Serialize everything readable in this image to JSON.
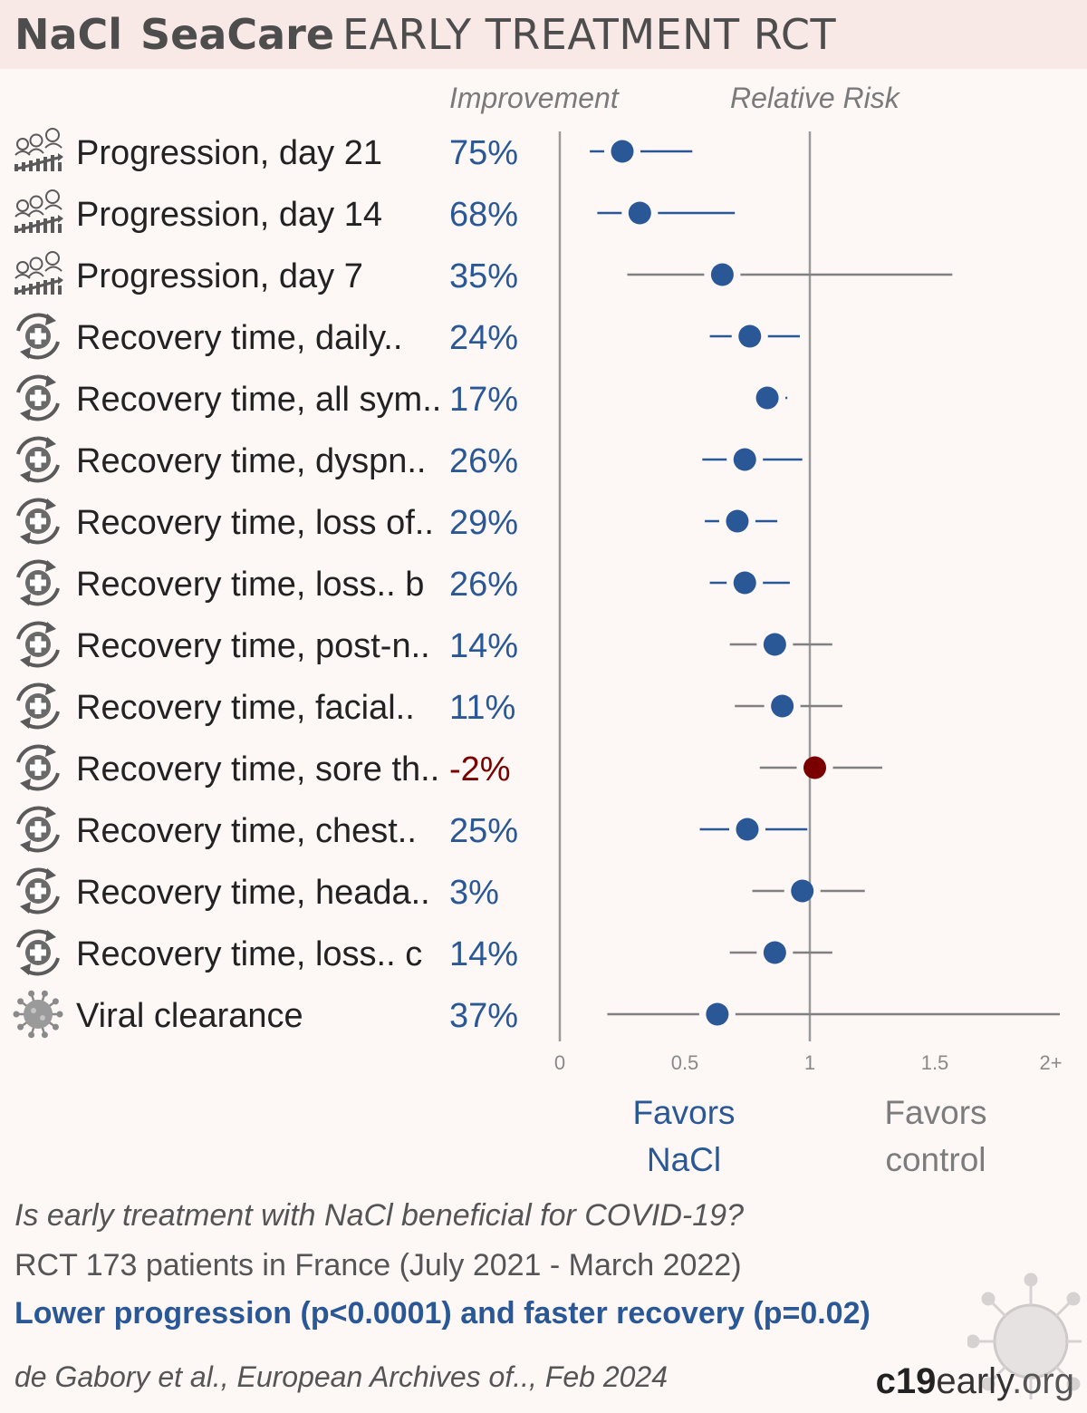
{
  "header": {
    "drug": "NaCl",
    "trial": "SeaCare",
    "subtitle": "EARLY TREATMENT  RCT"
  },
  "columns": {
    "improvement": "Improvement",
    "relative_risk": "Relative Risk"
  },
  "colors": {
    "favorable": "#2a5896",
    "unfavorable": "#7a0000",
    "ci_significant": "#2a5896",
    "ci_nonsignificant": "#808080",
    "axis": "#9a9a9a",
    "title_background": "#f8e8e6",
    "page_background": "#fdf7f6"
  },
  "chart_data": {
    "type": "forest",
    "xlim": [
      0,
      2
    ],
    "x_tick_labels": [
      "0",
      "0.5",
      "1",
      "1.5",
      "2+"
    ],
    "x_ticks": [
      0,
      0.5,
      1,
      1.5,
      2
    ],
    "reference_line": 1,
    "rows": [
      {
        "label": "Progression, day 21",
        "icon": "progression-icon",
        "improvement": "75%",
        "rr": 0.25,
        "ci": [
          0.12,
          0.53
        ],
        "significant": true
      },
      {
        "label": "Progression, day 14",
        "icon": "progression-icon",
        "improvement": "68%",
        "rr": 0.32,
        "ci": [
          0.15,
          0.7
        ],
        "significant": true
      },
      {
        "label": "Progression, day 7",
        "icon": "progression-icon",
        "improvement": "35%",
        "rr": 0.65,
        "ci": [
          0.27,
          1.57
        ],
        "significant": false
      },
      {
        "label": "Recovery time, daily..",
        "icon": "recovery-icon",
        "improvement": "24%",
        "rr": 0.76,
        "ci": [
          0.6,
          0.96
        ],
        "significant": true
      },
      {
        "label": "Recovery time, all sym..",
        "icon": "recovery-icon",
        "improvement": "17%",
        "rr": 0.83,
        "ci": [
          0.76,
          0.91
        ],
        "significant": true
      },
      {
        "label": "Recovery time, dyspn..",
        "icon": "recovery-icon",
        "improvement": "26%",
        "rr": 0.74,
        "ci": [
          0.57,
          0.97
        ],
        "significant": true
      },
      {
        "label": "Recovery time, loss of..",
        "icon": "recovery-icon",
        "improvement": "29%",
        "rr": 0.71,
        "ci": [
          0.58,
          0.87
        ],
        "significant": true
      },
      {
        "label": "Recovery time, loss.. b",
        "icon": "recovery-icon",
        "improvement": "26%",
        "rr": 0.74,
        "ci": [
          0.6,
          0.92
        ],
        "significant": true
      },
      {
        "label": "Recovery time, post-n..",
        "icon": "recovery-icon",
        "improvement": "14%",
        "rr": 0.86,
        "ci": [
          0.68,
          1.09
        ],
        "significant": false
      },
      {
        "label": "Recovery time, facial..",
        "icon": "recovery-icon",
        "improvement": "11%",
        "rr": 0.89,
        "ci": [
          0.7,
          1.13
        ],
        "significant": false
      },
      {
        "label": "Recovery time, sore th..",
        "icon": "recovery-icon",
        "improvement": "-2%",
        "rr": 1.02,
        "ci": [
          0.8,
          1.29
        ],
        "significant": false
      },
      {
        "label": "Recovery time, chest..",
        "icon": "recovery-icon",
        "improvement": "25%",
        "rr": 0.75,
        "ci": [
          0.56,
          0.99
        ],
        "significant": true
      },
      {
        "label": "Recovery time, heada..",
        "icon": "recovery-icon",
        "improvement": "3%",
        "rr": 0.97,
        "ci": [
          0.77,
          1.22
        ],
        "significant": false
      },
      {
        "label": "Recovery time, loss.. c",
        "icon": "recovery-icon",
        "improvement": "14%",
        "rr": 0.86,
        "ci": [
          0.68,
          1.09
        ],
        "significant": false
      },
      {
        "label": "Viral clearance",
        "icon": "virus-icon",
        "improvement": "37%",
        "rr": 0.63,
        "ci": [
          0.19,
          2.0
        ],
        "significant": false
      }
    ]
  },
  "favors": {
    "treatment_line1": "Favors",
    "treatment_line2": "NaCl",
    "control_line1": "Favors",
    "control_line2": "control"
  },
  "footer": {
    "question": "Is early treatment with NaCl beneficial for COVID-19?",
    "design": "RCT 173 patients in France (July 2021 - March 2022)",
    "result": "Lower progression (p<0.0001) and faster recovery (p=0.02)",
    "citation": "de Gabory et al., European Archives of.., Feb 2024",
    "brand_bold": "c19",
    "brand_rest": "early",
    "brand_tld": ".org"
  }
}
